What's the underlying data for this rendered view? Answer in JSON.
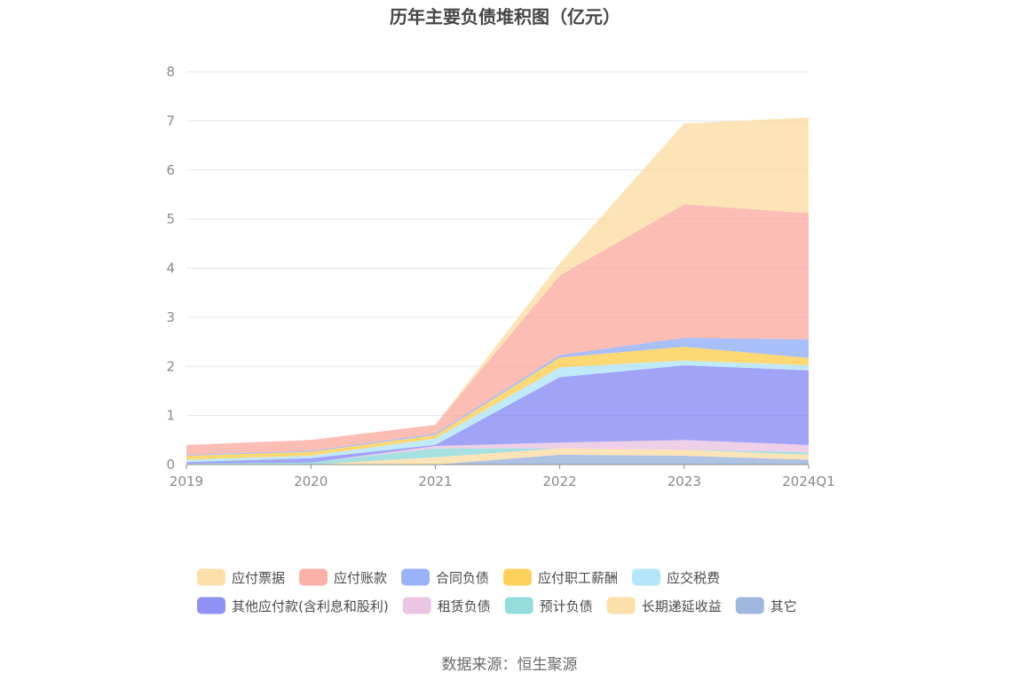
{
  "chart_data": {
    "type": "area",
    "stacked": true,
    "title": "历年主要负债堆积图（亿元）",
    "categories": [
      "2019",
      "2020",
      "2021",
      "2022",
      "2023",
      "2024Q1"
    ],
    "ylim": [
      0,
      8
    ],
    "yticks": [
      "0",
      "1",
      "2",
      "3",
      "4",
      "5",
      "6",
      "7",
      "8"
    ],
    "grid": true,
    "legend_position": "bottom",
    "series": [
      {
        "name": "其它",
        "color": "#8fabd9",
        "values": [
          0.0,
          0.0,
          0.0,
          0.2,
          0.18,
          0.1
        ]
      },
      {
        "name": "长期递延收益",
        "color": "#fcd99a",
        "values": [
          0.0,
          0.0,
          0.15,
          0.13,
          0.12,
          0.1
        ]
      },
      {
        "name": "预计负债",
        "color": "#82d6d6",
        "values": [
          0.02,
          0.04,
          0.18,
          0.0,
          0.0,
          0.05
        ]
      },
      {
        "name": "租赁负债",
        "color": "#e8bcdf",
        "values": [
          0.0,
          0.0,
          0.05,
          0.12,
          0.2,
          0.15
        ]
      },
      {
        "name": "其他应付款(含利息和股利)",
        "color": "#7b7ff2",
        "values": [
          0.03,
          0.09,
          0.02,
          1.33,
          1.52,
          1.52
        ]
      },
      {
        "name": "应交税费",
        "color": "#a8e0f8",
        "values": [
          0.05,
          0.05,
          0.13,
          0.2,
          0.1,
          0.1
        ]
      },
      {
        "name": "应付职工薪酬",
        "color": "#fdc93d",
        "values": [
          0.08,
          0.08,
          0.07,
          0.2,
          0.28,
          0.15
        ]
      },
      {
        "name": "合同负债",
        "color": "#87a6f7",
        "values": [
          0.02,
          0.02,
          0.03,
          0.05,
          0.18,
          0.38
        ]
      },
      {
        "name": "应付账款",
        "color": "#fba399",
        "values": [
          0.2,
          0.22,
          0.18,
          1.62,
          2.72,
          2.57
        ]
      },
      {
        "name": "应付票据",
        "color": "#fcd99a",
        "values": [
          0.0,
          0.0,
          0.0,
          0.25,
          1.65,
          1.95
        ]
      }
    ],
    "legend_order": [
      "应付票据",
      "应付账款",
      "合同负债",
      "应付职工薪酬",
      "应交税费",
      "其他应付款(含利息和股利)",
      "租赁负债",
      "预计负债",
      "长期递延收益",
      "其它"
    ]
  },
  "source_text": "数据来源：恒生聚源"
}
